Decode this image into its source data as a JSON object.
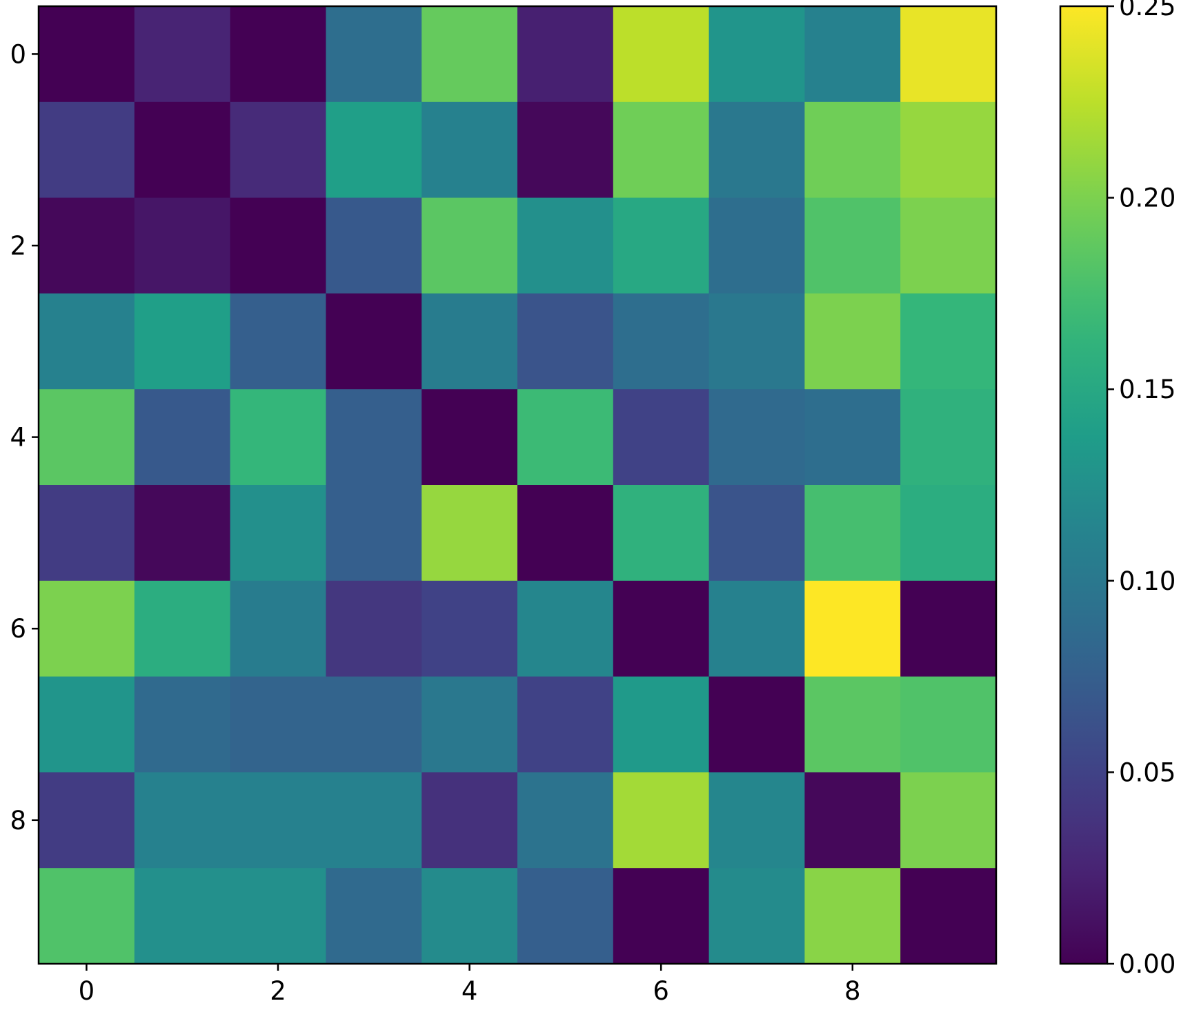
{
  "chart_data": {
    "type": "heatmap",
    "title": "",
    "xlabel": "",
    "ylabel": "",
    "colormap": "viridis",
    "rows": 10,
    "cols": 10,
    "x_ticks": [
      "0",
      "2",
      "4",
      "6",
      "8"
    ],
    "y_ticks": [
      "0",
      "2",
      "4",
      "6",
      "8"
    ],
    "colorbar": {
      "range": [
        0.0,
        0.25
      ],
      "ticks": [
        "0.00",
        "0.05",
        "0.10",
        "0.15",
        "0.20",
        "0.25"
      ],
      "tick_values": [
        0.0,
        0.05,
        0.1,
        0.15,
        0.2,
        0.25
      ]
    },
    "values": [
      [
        0.0,
        0.025,
        0.0,
        0.09,
        0.19,
        0.022,
        0.225,
        0.13,
        0.11,
        0.242
      ],
      [
        0.045,
        0.0,
        0.03,
        0.14,
        0.11,
        0.005,
        0.195,
        0.1,
        0.195,
        0.21
      ],
      [
        0.005,
        0.015,
        0.0,
        0.07,
        0.185,
        0.125,
        0.15,
        0.09,
        0.18,
        0.2
      ],
      [
        0.11,
        0.14,
        0.075,
        0.0,
        0.105,
        0.065,
        0.09,
        0.1,
        0.2,
        0.165
      ],
      [
        0.185,
        0.07,
        0.165,
        0.075,
        0.0,
        0.17,
        0.05,
        0.085,
        0.09,
        0.16
      ],
      [
        0.045,
        0.005,
        0.125,
        0.075,
        0.21,
        0.0,
        0.16,
        0.065,
        0.175,
        0.155
      ],
      [
        0.2,
        0.155,
        0.105,
        0.04,
        0.05,
        0.115,
        0.0,
        0.11,
        0.25,
        0.0
      ],
      [
        0.13,
        0.085,
        0.08,
        0.08,
        0.1,
        0.05,
        0.135,
        0.0,
        0.185,
        0.18
      ],
      [
        0.045,
        0.11,
        0.11,
        0.11,
        0.035,
        0.095,
        0.215,
        0.115,
        0.005,
        0.2
      ],
      [
        0.18,
        0.125,
        0.125,
        0.085,
        0.12,
        0.075,
        0.0,
        0.12,
        0.205,
        0.0
      ]
    ]
  }
}
